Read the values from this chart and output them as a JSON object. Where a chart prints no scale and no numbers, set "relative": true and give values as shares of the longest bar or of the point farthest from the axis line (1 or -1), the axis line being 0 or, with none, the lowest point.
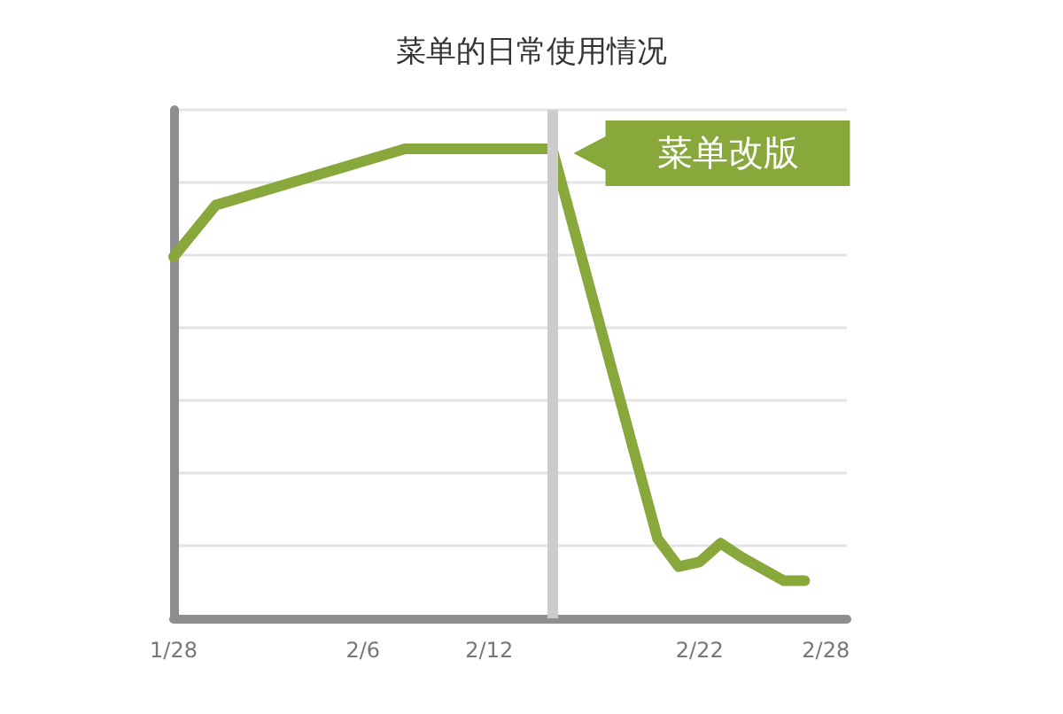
{
  "chart_data": {
    "type": "line",
    "title": "菜单的日常使用情况",
    "relative": true,
    "grid": "y",
    "x": [
      "--01-28",
      "--01-30",
      "--02-08",
      "--02-15",
      "--02-20",
      "--02-21",
      "--02-22",
      "--02-23",
      "--02-24",
      "--02-26",
      "--02-27"
    ],
    "xlim": [
      "--01-28",
      "--03-01"
    ],
    "xticks": [
      {
        "value": "--01-28",
        "label": "1/28"
      },
      {
        "value": "--02-06",
        "label": "2/6"
      },
      {
        "value": "--02-12",
        "label": "2/12"
      },
      {
        "value": "--02-22",
        "label": "2/22"
      },
      {
        "value": "--02-28",
        "label": "2/28"
      }
    ],
    "series": [
      {
        "color": "#88a83c",
        "values": [
          0.77,
          0.88,
          1,
          1,
          0.17,
          0.11,
          0.12,
          0.16,
          0.13,
          0.08,
          0.08
        ]
      }
    ],
    "ref_lines": [
      {
        "axis": "x",
        "value": "--02-15",
        "label": "菜单改版",
        "color": "#cccccc"
      }
    ]
  }
}
